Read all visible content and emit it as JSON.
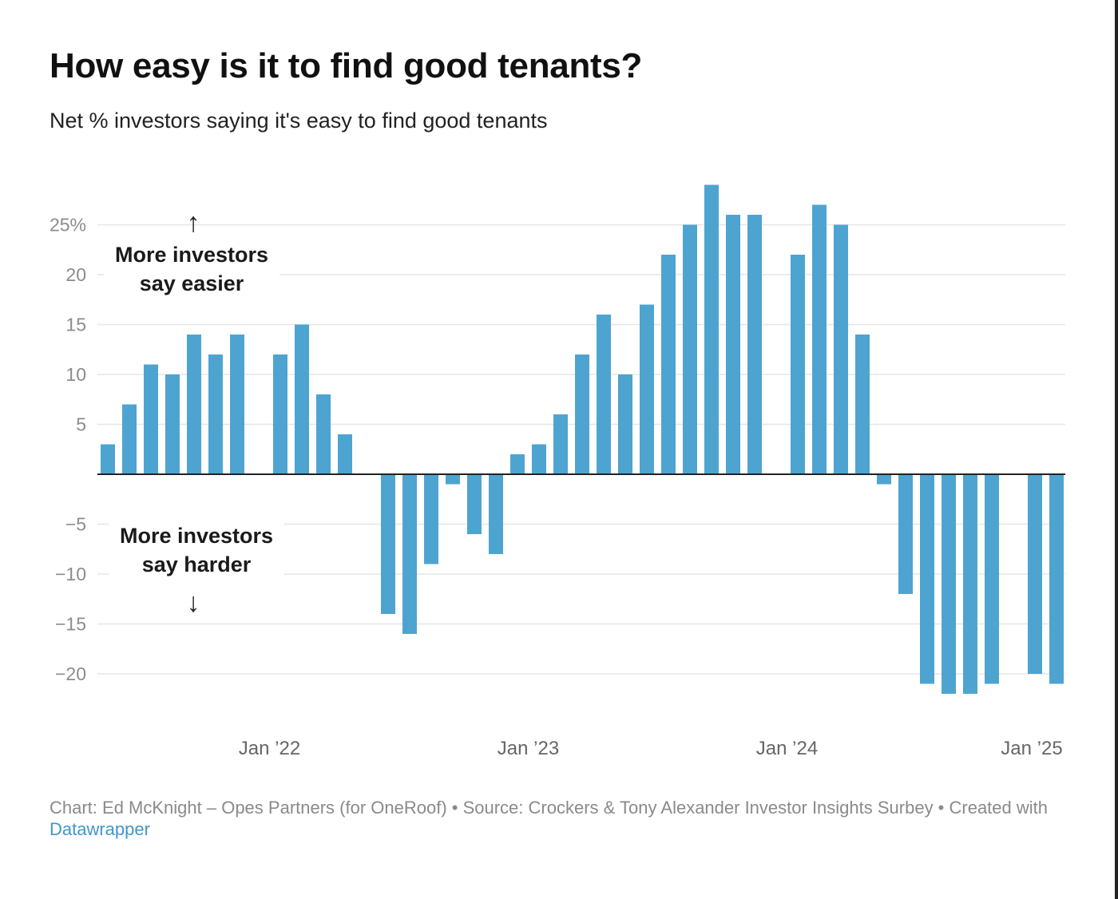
{
  "title": "How easy is it to find good tenants?",
  "subtitle": "Net % investors saying it's easy to find good tenants",
  "footer": {
    "credit": "Chart: Ed McKnight – Opes Partners (for OneRoof) • Source: Crockers & Tony Alexander Investor Insights Surbey • Created with",
    "tool_link": "Datawrapper"
  },
  "annotations": {
    "up_line1": "More investors",
    "up_line2": "say easier",
    "down_line1": "More investors",
    "down_line2": "say harder",
    "up_arrow": "↑",
    "down_arrow": "↓"
  },
  "colors": {
    "bar": "#4ea4d0",
    "grid": "#e6e6e6",
    "zero_line": "#222222",
    "tick_text": "#8c8c8c",
    "xtick_text": "#666666"
  },
  "chart_data": {
    "type": "bar",
    "title": "How easy is it to find good tenants?",
    "ylabel": "Net % investors saying it's easy to find good tenants",
    "xlabel": "",
    "ylim": [
      -24,
      29
    ],
    "yticks": [
      {
        "value": 25,
        "label": "25%"
      },
      {
        "value": 20,
        "label": "20"
      },
      {
        "value": 15,
        "label": "15"
      },
      {
        "value": 10,
        "label": "10"
      },
      {
        "value": 5,
        "label": "5"
      },
      {
        "value": -5,
        "label": "−5"
      },
      {
        "value": -10,
        "label": "−10"
      },
      {
        "value": -15,
        "label": "−15"
      },
      {
        "value": -20,
        "label": "−20"
      }
    ],
    "xticks": [
      {
        "index": 7.5,
        "label": "Jan ’22"
      },
      {
        "index": 19.5,
        "label": "Jan ’23"
      },
      {
        "index": 31.5,
        "label": "Jan ’24"
      },
      {
        "index": 43.5,
        "label": "Jan ’25"
      }
    ],
    "series": [
      {
        "name": "Net % investors saying it's easy to find good tenants",
        "values": [
          3,
          7,
          11,
          10,
          14,
          12,
          14,
          null,
          12,
          15,
          8,
          4,
          null,
          -14,
          -16,
          -9,
          -1,
          -6,
          -8,
          2,
          3,
          6,
          12,
          16,
          10,
          17,
          22,
          25,
          29,
          26,
          26,
          null,
          22,
          27,
          25,
          14,
          -1,
          -12,
          -21,
          -22,
          -22,
          -21,
          null,
          -20,
          -21
        ]
      }
    ]
  }
}
